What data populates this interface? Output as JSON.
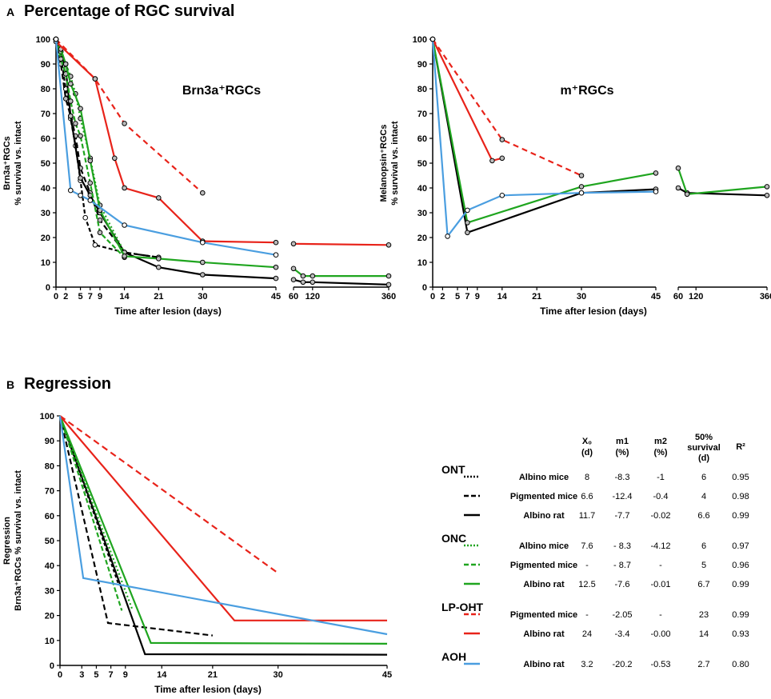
{
  "panel_a": {
    "letter": "A",
    "title": "Percentage of RGC survival"
  },
  "panel_b": {
    "letter": "B",
    "title": "Regression"
  },
  "colors": {
    "black": "#000000",
    "green": "#1fa51f",
    "red": "#e8231a",
    "blue": "#4a9ee0",
    "marker_fill": "#bbbbbb"
  },
  "chart_data": [
    {
      "id": "brn3a",
      "type": "line",
      "title": "Brn3a⁺RGCs",
      "xlabel": "Time after lesion (days)",
      "ylabel_line1": "Brn3a⁺RGCs",
      "ylabel_line2": "% survival vs. intact",
      "ylim": [
        0,
        100
      ],
      "yticks": [
        0,
        10,
        20,
        30,
        40,
        50,
        60,
        70,
        80,
        90,
        100
      ],
      "segment1": {
        "xlim": [
          0,
          45
        ],
        "ticks": [
          0,
          2,
          5,
          7,
          9,
          14,
          21,
          30,
          45
        ]
      },
      "segment2": {
        "xlim": [
          60,
          360
        ],
        "ticks": [
          60,
          120,
          360
        ]
      },
      "series": [
        {
          "name": "ONT Albino mice",
          "color": "black",
          "dash": "5,3",
          "marker": "white",
          "points": [
            [
              0,
              100
            ],
            [
              1,
              93
            ],
            [
              2,
              80
            ],
            [
              3,
              68
            ],
            [
              4,
              57
            ],
            [
              5,
              43
            ],
            [
              6,
              28
            ],
            [
              8,
              17
            ],
            [
              14,
              14
            ],
            [
              21,
              12
            ]
          ]
        },
        {
          "name": "ONT Pigmented mice",
          "color": "black",
          "dash": "7,4",
          "marker": "gray",
          "points": [
            [
              0,
              100
            ],
            [
              1,
              90
            ],
            [
              2,
              76
            ],
            [
              3,
              69
            ],
            [
              4,
              61
            ],
            [
              5,
              48
            ],
            [
              7,
              38
            ],
            [
              9,
              27
            ],
            [
              14,
              14
            ],
            [
              21,
              12
            ]
          ]
        },
        {
          "name": "ONT Albino rat",
          "color": "black",
          "dash": "",
          "marker": "gray",
          "points": [
            [
              0,
              100
            ],
            [
              1,
              95
            ],
            [
              2,
              88
            ],
            [
              3,
              69
            ],
            [
              5,
              44
            ],
            [
              7,
              37
            ],
            [
              9,
              30
            ],
            [
              14,
              14
            ],
            [
              21,
              8
            ],
            [
              30,
              5
            ],
            [
              45,
              3.5
            ],
            [
              60,
              3
            ],
            [
              90,
              2
            ],
            [
              120,
              2
            ],
            [
              360,
              1
            ]
          ]
        },
        {
          "name": "ONC Albino mice",
          "color": "green",
          "dash": "2,3",
          "marker": "gray",
          "points": [
            [
              0,
              100
            ],
            [
              1,
              95
            ],
            [
              2,
              90
            ],
            [
              3,
              85
            ],
            [
              4,
              78
            ],
            [
              5,
              68
            ],
            [
              7,
              52
            ],
            [
              9,
              33
            ],
            [
              14,
              14
            ]
          ]
        },
        {
          "name": "ONC Pigmented mice",
          "color": "green",
          "dash": "6,3",
          "marker": "gray",
          "points": [
            [
              0,
              100
            ],
            [
              1,
              92
            ],
            [
              2,
              86
            ],
            [
              3,
              75
            ],
            [
              4,
              66
            ],
            [
              5,
              61
            ],
            [
              7,
              42
            ],
            [
              9,
              22
            ],
            [
              14,
              12
            ]
          ]
        },
        {
          "name": "ONC Albino rat",
          "color": "green",
          "dash": "",
          "marker": "gray",
          "points": [
            [
              0,
              100
            ],
            [
              1,
              96
            ],
            [
              2,
              90
            ],
            [
              3,
              82
            ],
            [
              5,
              72
            ],
            [
              7,
              51
            ],
            [
              9,
              31
            ],
            [
              14,
              12.5
            ],
            [
              21,
              11.5
            ],
            [
              30,
              10
            ],
            [
              45,
              8
            ],
            [
              60,
              7.5
            ],
            [
              90,
              4.5
            ],
            [
              120,
              4.5
            ],
            [
              360,
              4.5
            ]
          ]
        },
        {
          "name": "LP-OHT Pigmented mice",
          "color": "red",
          "dash": "7,5",
          "marker": "gray",
          "points": [
            [
              0,
              100
            ],
            [
              8,
              84
            ],
            [
              14,
              66
            ],
            [
              30,
              38
            ]
          ]
        },
        {
          "name": "LP-OHT Albino rat",
          "color": "red",
          "dash": "",
          "marker": "gray",
          "points": [
            [
              0,
              99
            ],
            [
              8,
              84
            ],
            [
              12,
              52
            ],
            [
              14,
              40
            ],
            [
              21,
              36
            ],
            [
              30,
              18.5
            ],
            [
              45,
              18
            ],
            [
              60,
              17.5
            ],
            [
              360,
              17
            ]
          ]
        },
        {
          "name": "AOH Albino rat",
          "color": "blue",
          "dash": "",
          "marker": "white",
          "points": [
            [
              0,
              100
            ],
            [
              3,
              39
            ],
            [
              5,
              37
            ],
            [
              7,
              35
            ],
            [
              14,
              25
            ],
            [
              30,
              18
            ],
            [
              45,
              13
            ]
          ]
        }
      ]
    },
    {
      "id": "melanopsin",
      "type": "line",
      "title": "m⁺RGCs",
      "xlabel": "Time after lesion (days)",
      "ylabel_line1": "Melanopsin⁺RGCs",
      "ylabel_line2": "% survival vs. intact",
      "ylim": [
        0,
        100
      ],
      "yticks": [
        0,
        10,
        20,
        30,
        40,
        50,
        60,
        70,
        80,
        90,
        100
      ],
      "segment1": {
        "xlim": [
          0,
          45
        ],
        "ticks": [
          0,
          2,
          5,
          7,
          9,
          14,
          21,
          30,
          45
        ]
      },
      "segment2": {
        "xlim": [
          60,
          360
        ],
        "ticks": [
          60,
          120,
          360
        ]
      },
      "series": [
        {
          "name": "ONT Albino rat",
          "color": "black",
          "dash": "",
          "marker": "gray",
          "points": [
            [
              0,
              100
            ],
            [
              7,
              22
            ],
            [
              30,
              38
            ],
            [
              45,
              39.5
            ],
            [
              60,
              40
            ],
            [
              90,
              38
            ],
            [
              360,
              37
            ]
          ]
        },
        {
          "name": "ONC Albino rat",
          "color": "green",
          "dash": "",
          "marker": "gray",
          "points": [
            [
              0,
              100
            ],
            [
              7,
              26
            ],
            [
              30,
              40.5
            ],
            [
              45,
              46
            ],
            [
              60,
              48
            ],
            [
              90,
              37.5
            ],
            [
              360,
              40.5
            ]
          ]
        },
        {
          "name": "LP-OHT Pigmented mice",
          "color": "red",
          "dash": "7,5",
          "marker": "gray",
          "points": [
            [
              0,
              100
            ],
            [
              14,
              59.5
            ],
            [
              30,
              45
            ]
          ]
        },
        {
          "name": "LP-OHT Albino rat",
          "color": "red",
          "dash": "",
          "marker": "gray",
          "points": [
            [
              0,
              100
            ],
            [
              12,
              51
            ],
            [
              14,
              52
            ]
          ]
        },
        {
          "name": "AOH Albino rat",
          "color": "blue",
          "dash": "",
          "marker": "white",
          "points": [
            [
              0,
              100
            ],
            [
              3,
              20.5
            ],
            [
              7,
              31
            ],
            [
              14,
              37
            ],
            [
              30,
              38
            ],
            [
              45,
              38.5
            ]
          ]
        }
      ]
    },
    {
      "id": "regression",
      "type": "line",
      "title": "",
      "xlabel": "Time after lesion (days)",
      "ylabel_line1": "Regression",
      "ylabel_line2": "Brn3a⁺RGCs % survival vs. intact",
      "ylim": [
        0,
        100
      ],
      "yticks": [
        0,
        10,
        20,
        30,
        40,
        50,
        60,
        70,
        80,
        90,
        100
      ],
      "segment1": {
        "xlim": [
          0,
          45
        ],
        "ticks": [
          0,
          3,
          5,
          7,
          9,
          14,
          21,
          30,
          45
        ]
      },
      "series": [
        {
          "name": "ONT Albino mice",
          "color": "black",
          "dash": "4,3",
          "marker": "",
          "points": [
            [
              0,
              100
            ],
            [
              8,
              33
            ]
          ]
        },
        {
          "name": "ONT Pigmented mice",
          "color": "black",
          "dash": "7,4",
          "marker": "",
          "points": [
            [
              0,
              100
            ],
            [
              6.6,
              17
            ],
            [
              21,
              12
            ]
          ]
        },
        {
          "name": "ONT Albino rat",
          "color": "black",
          "dash": "",
          "marker": "",
          "points": [
            [
              0,
              100
            ],
            [
              11.7,
              4.5
            ],
            [
              45,
              4.3
            ]
          ]
        },
        {
          "name": "ONC Albino mice",
          "color": "green",
          "dash": "2,3",
          "marker": "",
          "points": [
            [
              0,
              100
            ],
            [
              10,
              22
            ]
          ]
        },
        {
          "name": "ONC Pigmented mice",
          "color": "green",
          "dash": "6,3",
          "marker": "",
          "points": [
            [
              0,
              100
            ],
            [
              8.5,
              22
            ]
          ]
        },
        {
          "name": "ONC Albino rat",
          "color": "green",
          "dash": "",
          "marker": "",
          "points": [
            [
              0,
              100
            ],
            [
              12.5,
              9
            ],
            [
              45,
              8.7
            ]
          ]
        },
        {
          "name": "LP-OHT Pigmented mice",
          "color": "red",
          "dash": "8,5",
          "marker": "",
          "points": [
            [
              0,
              100
            ],
            [
              30,
              37
            ]
          ]
        },
        {
          "name": "LP-OHT Albino rat",
          "color": "red",
          "dash": "",
          "marker": "",
          "points": [
            [
              0,
              100
            ],
            [
              24,
              18
            ],
            [
              45,
              18
            ]
          ]
        },
        {
          "name": "AOH Albino rat",
          "color": "blue",
          "dash": "",
          "marker": "",
          "points": [
            [
              0,
              100
            ],
            [
              3.2,
              35
            ],
            [
              45,
              12.5
            ]
          ]
        }
      ]
    }
  ],
  "regression_table": {
    "headers": {
      "x0": "X₀",
      "x0_unit": "(d)",
      "m1": "m1",
      "m1_unit": "(%)",
      "m2": "m2",
      "m2_unit": "(%)",
      "survival": "50%",
      "survival2": "survival",
      "survival_unit": "(d)",
      "r2": "R²"
    },
    "groups": [
      {
        "label": "ONT",
        "rows": [
          {
            "label": "Albino mice",
            "color": "black",
            "dash": "2,2",
            "x0": "8",
            "m1": "-8.3",
            "m2": "-1",
            "s50": "6",
            "r2": "0.95"
          },
          {
            "label": "Pigmented mice",
            "color": "black",
            "dash": "6,3",
            "x0": "6.6",
            "m1": "-12.4",
            "m2": "-0.4",
            "s50": "4",
            "r2": "0.98"
          },
          {
            "label": "Albino rat",
            "color": "black",
            "dash": "",
            "x0": "11.7",
            "m1": "-7.7",
            "m2": "-0.02",
            "s50": "6.6",
            "r2": "0.99"
          }
        ]
      },
      {
        "label": "ONC",
        "rows": [
          {
            "label": "Albino mice",
            "color": "green",
            "dash": "2,2",
            "x0": "7.6",
            "m1": "- 8.3",
            "m2": "-4.12",
            "s50": "6",
            "r2": "0.97"
          },
          {
            "label": "Pigmented mice",
            "color": "green",
            "dash": "6,3",
            "x0": "-",
            "m1": "- 8.7",
            "m2": "-",
            "s50": "5",
            "r2": "0.96"
          },
          {
            "label": "Albino rat",
            "color": "green",
            "dash": "",
            "x0": "12.5",
            "m1": "-7.6",
            "m2": "-0.01",
            "s50": "6.7",
            "r2": "0.99"
          }
        ]
      },
      {
        "label": "LP-OHT",
        "rows": [
          {
            "label": "Pigmented mice",
            "color": "red",
            "dash": "6,3",
            "x0": "-",
            "m1": "-2.05",
            "m2": "-",
            "s50": "23",
            "r2": "0.99"
          },
          {
            "label": "Albino rat",
            "color": "red",
            "dash": "",
            "x0": "24",
            "m1": "-3.4",
            "m2": "-0.00",
            "s50": "14",
            "r2": "0.93"
          }
        ]
      },
      {
        "label": "AOH",
        "rows": [
          {
            "label": "Albino rat",
            "color": "blue",
            "dash": "",
            "x0": "3.2",
            "m1": "-20.2",
            "m2": "-0.53",
            "s50": "2.7",
            "r2": "0.80"
          }
        ]
      }
    ]
  }
}
